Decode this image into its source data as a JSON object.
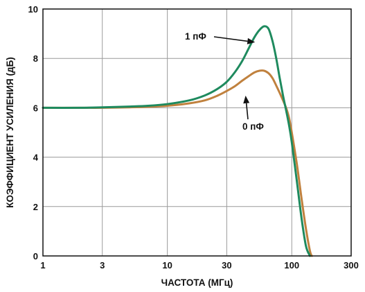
{
  "chart_data": {
    "type": "line",
    "xlabel": "ЧАСТОТА (МГц)",
    "ylabel": "КОЭФФИЦИЕНТ УСИЛЕНИЯ (дБ)",
    "x_scale": "log",
    "xlim": [
      1,
      300
    ],
    "ylim": [
      0,
      10
    ],
    "grid": true,
    "x_ticks": [
      {
        "value": 1,
        "label": "1"
      },
      {
        "value": 3,
        "label": "3"
      },
      {
        "value": 10,
        "label": "10"
      },
      {
        "value": 30,
        "label": "30"
      },
      {
        "value": 100,
        "label": "100"
      },
      {
        "value": 300,
        "label": "300"
      }
    ],
    "y_ticks": [
      {
        "value": 0,
        "label": "0"
      },
      {
        "value": 2,
        "label": "2"
      },
      {
        "value": 4,
        "label": "4"
      },
      {
        "value": 6,
        "label": "6"
      },
      {
        "value": 8,
        "label": "8"
      },
      {
        "value": 10,
        "label": "10"
      }
    ],
    "series": [
      {
        "name": "1 пФ",
        "color": "#1e8a5e",
        "x": [
          1,
          2,
          3,
          5,
          7,
          10,
          15,
          20,
          25,
          30,
          35,
          40,
          45,
          50,
          55,
          60,
          65,
          70,
          75,
          80,
          85,
          90,
          95,
          100,
          110,
          120,
          130,
          140
        ],
        "y": [
          6.0,
          6.0,
          6.02,
          6.05,
          6.08,
          6.15,
          6.3,
          6.5,
          6.75,
          7.05,
          7.45,
          7.9,
          8.4,
          8.85,
          9.15,
          9.3,
          9.2,
          8.7,
          8.0,
          7.2,
          6.5,
          5.9,
          5.3,
          4.6,
          3.0,
          1.5,
          0.4,
          0.0
        ]
      },
      {
        "name": "0 пФ",
        "color": "#c0813e",
        "x": [
          1,
          2,
          3,
          5,
          7,
          10,
          15,
          20,
          25,
          30,
          35,
          40,
          45,
          50,
          55,
          60,
          65,
          70,
          75,
          80,
          85,
          90,
          95,
          100,
          110,
          120,
          130,
          140,
          145
        ],
        "y": [
          6.0,
          6.0,
          6.0,
          6.02,
          6.04,
          6.08,
          6.18,
          6.3,
          6.48,
          6.68,
          6.88,
          7.1,
          7.28,
          7.43,
          7.5,
          7.5,
          7.4,
          7.2,
          6.9,
          6.6,
          6.3,
          6.0,
          5.6,
          5.0,
          3.7,
          2.3,
          1.1,
          0.2,
          0.0
        ]
      }
    ],
    "annotations": [
      {
        "text": "1 пФ",
        "series": "1 пФ",
        "target_x": 52,
        "target_y": 8.6
      },
      {
        "text": "0 пФ",
        "series": "0 пФ",
        "target_x": 42,
        "target_y": 6.55
      }
    ]
  }
}
